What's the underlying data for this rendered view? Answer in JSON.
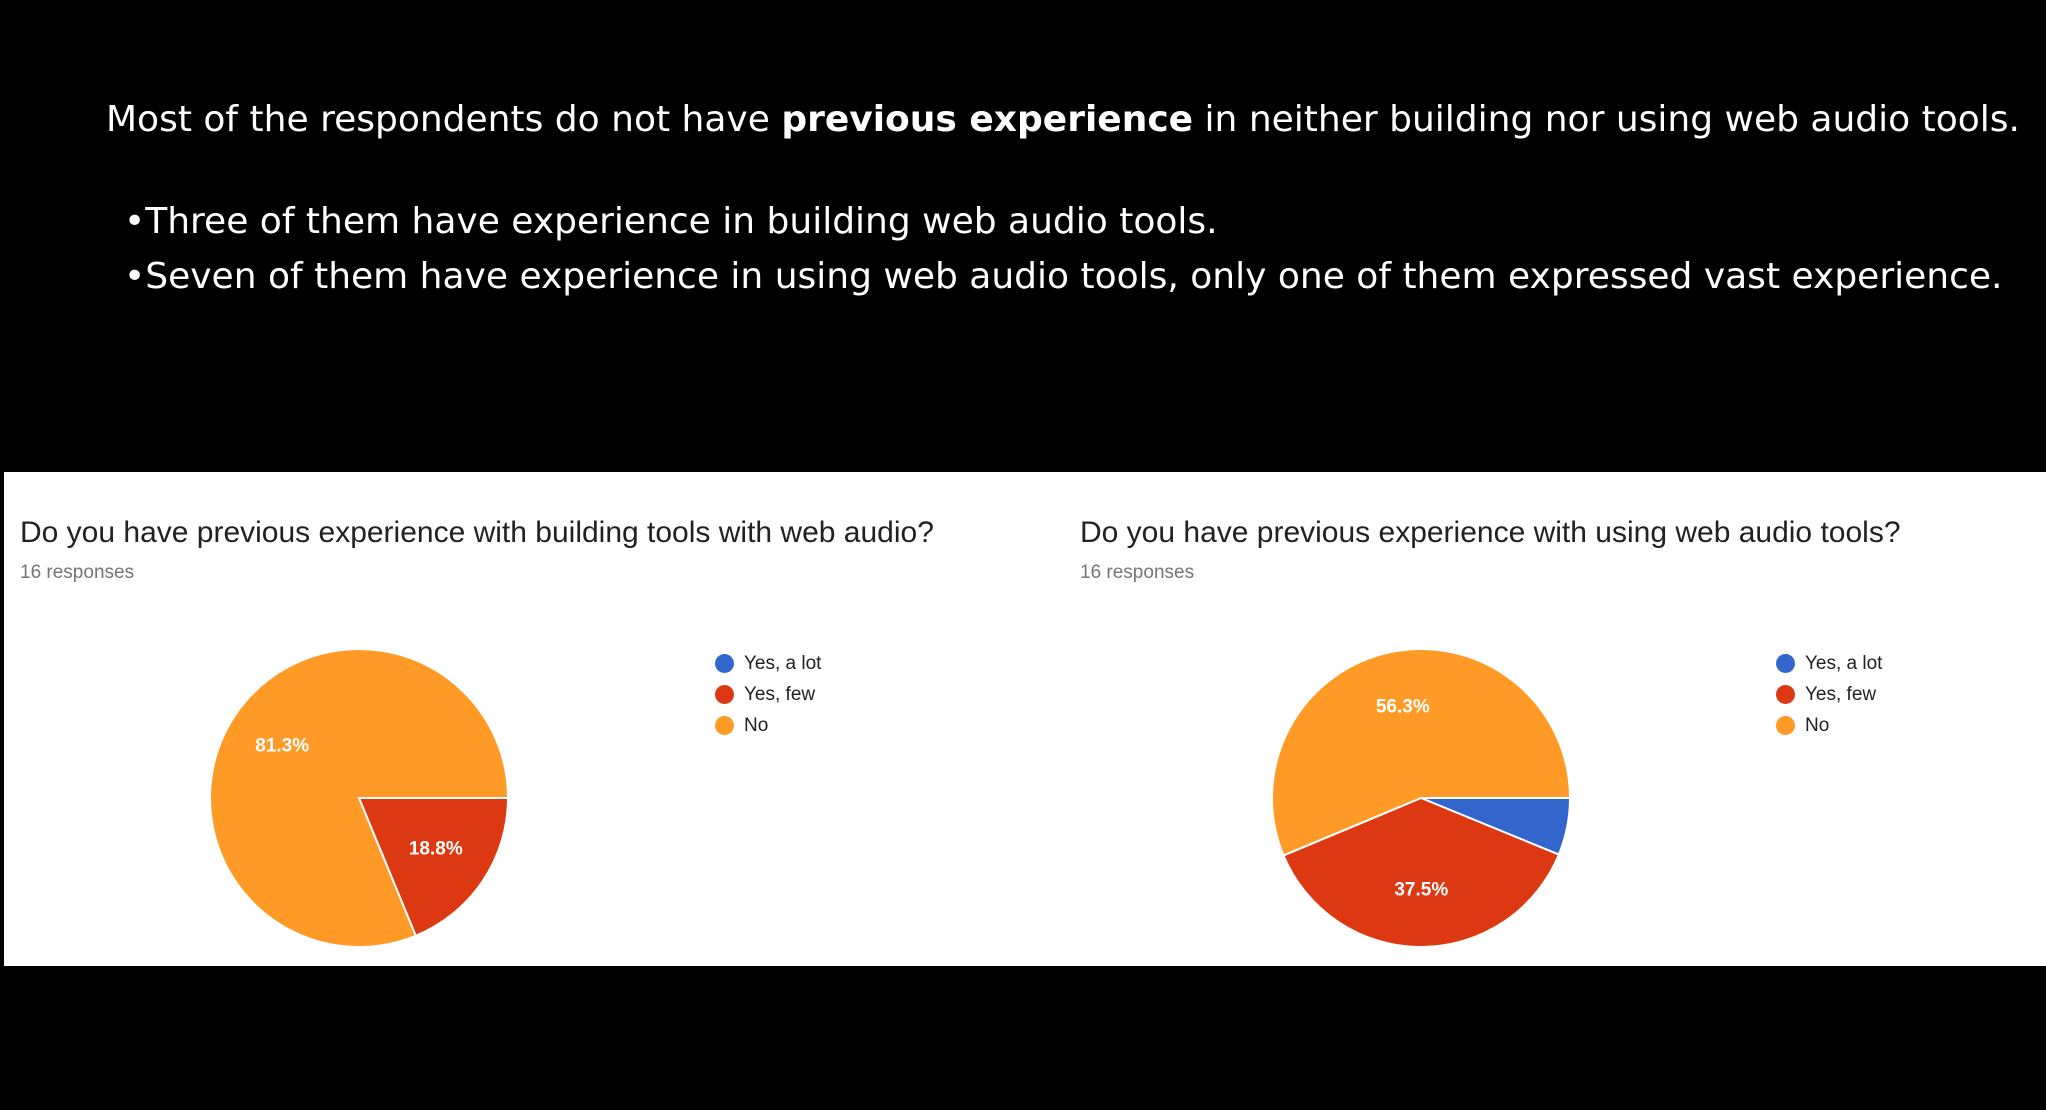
{
  "slide": {
    "intro_before": "Most of the respondents do not have ",
    "intro_bold": "previous experience",
    "intro_after": " in neither building nor using web audio tools.",
    "bullets": [
      "Three of them have experience in building web audio tools.",
      "Seven of them have experience in using web audio tools, only one of them expressed vast experience."
    ]
  },
  "colors": {
    "yes_a_lot": "#3366cc",
    "yes_few": "#dc3912",
    "no": "#ff9a27"
  },
  "chart_data": [
    {
      "type": "pie",
      "title": "Do you have previous experience with building tools with web audio?",
      "subtitle": "16 responses",
      "legend": [
        "Yes, a lot",
        "Yes, few",
        "No"
      ],
      "values": [
        0,
        18.8,
        81.3
      ],
      "labels": [
        "",
        "18.8%",
        "81.3%"
      ],
      "legend_position": "right"
    },
    {
      "type": "pie",
      "title": "Do you have previous experience with using web audio tools?",
      "subtitle": "16 responses",
      "legend": [
        "Yes, a lot",
        "Yes, few",
        "No"
      ],
      "values": [
        6.2,
        37.5,
        56.3
      ],
      "labels": [
        "",
        "37.5%",
        "56.3%"
      ],
      "legend_position": "right"
    }
  ]
}
